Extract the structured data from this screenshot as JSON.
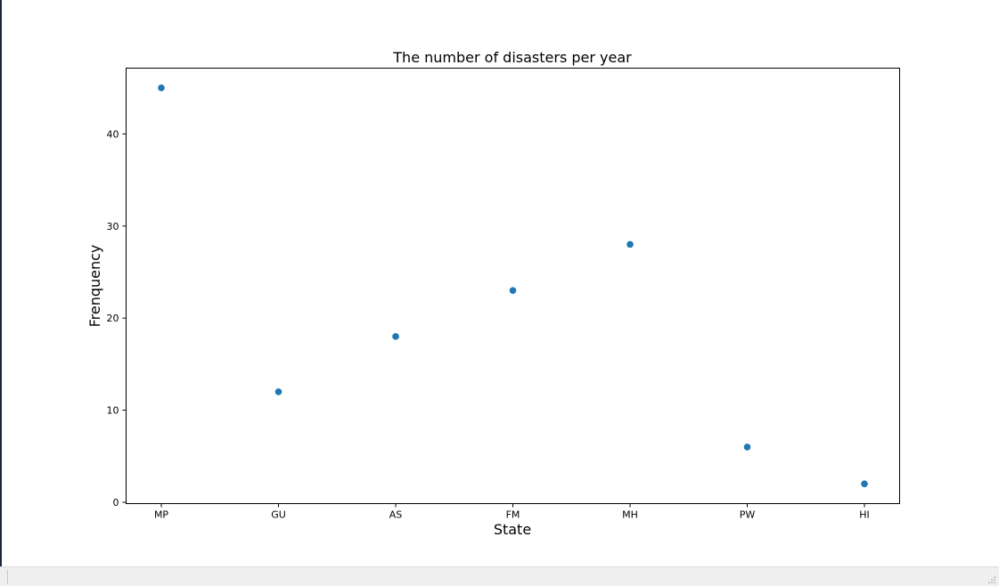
{
  "chart_data": {
    "type": "scatter",
    "title": "The number of disasters per year",
    "xlabel": "State",
    "ylabel": "Frenquency",
    "categories": [
      "MP",
      "GU",
      "AS",
      "FM",
      "MH",
      "PW",
      "HI"
    ],
    "values": [
      45,
      12,
      18,
      23,
      28,
      6,
      2
    ],
    "yticks": [
      0,
      10,
      20,
      30,
      40
    ],
    "ylim": [
      -0.15,
      47.15
    ],
    "grid": false,
    "legend": "none",
    "marker_color": "#1f77b4"
  }
}
